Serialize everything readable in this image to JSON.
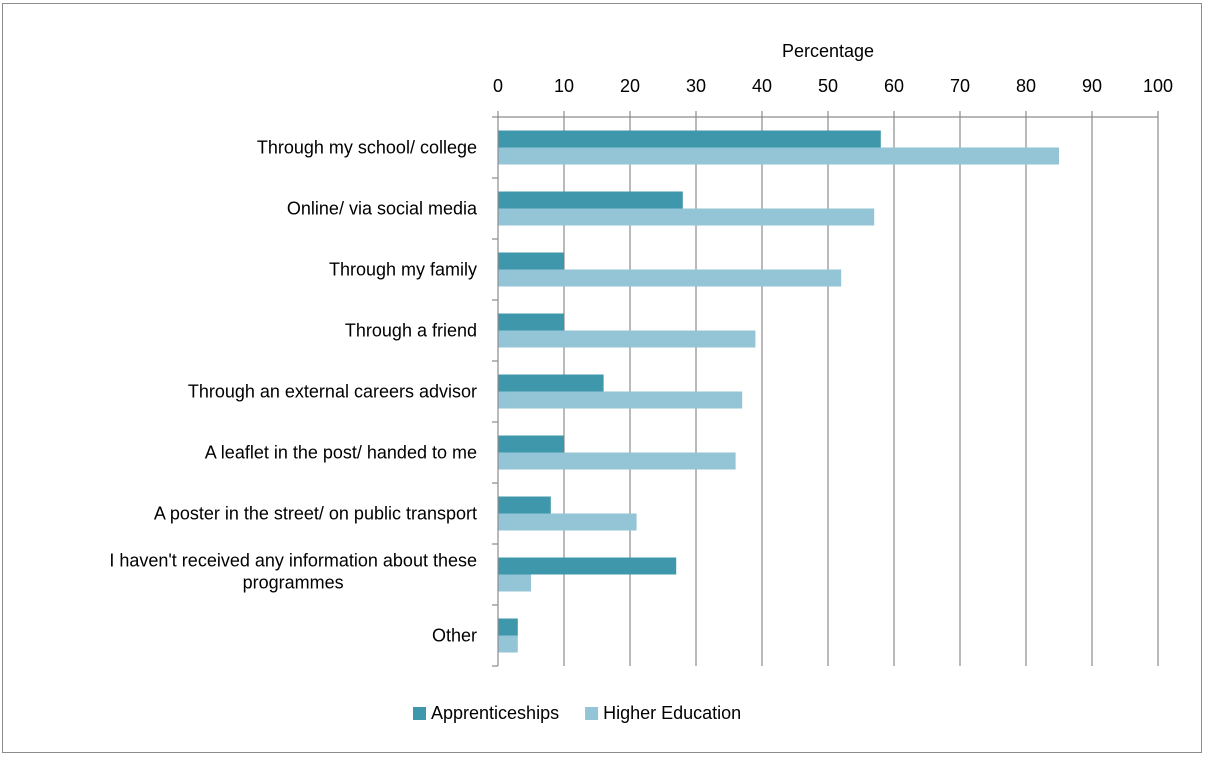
{
  "chart_data": {
    "type": "bar",
    "orientation": "horizontal",
    "title": "",
    "xlabel": "Percentage",
    "ylabel": "",
    "xlim": [
      0,
      100
    ],
    "x_ticks": [
      0,
      10,
      20,
      30,
      40,
      50,
      60,
      70,
      80,
      90,
      100
    ],
    "axis_position": "top",
    "grid": true,
    "legend_position": "bottom",
    "categories": [
      "Through my school/ college",
      "Online/ via social media",
      "Through my family",
      "Through a friend",
      "Through an external careers advisor",
      "A leaflet in the post/ handed to me",
      "A poster in the street/ on public transport",
      "I haven't received any information about these programmes",
      "Other"
    ],
    "series": [
      {
        "name": "Apprenticeships",
        "color": "#3f97ab",
        "values": [
          58,
          28,
          10,
          10,
          16,
          10,
          8,
          27,
          3
        ]
      },
      {
        "name": "Higher Education",
        "color": "#93c5d6",
        "values": [
          85,
          57,
          52,
          39,
          37,
          36,
          21,
          5,
          3
        ]
      }
    ]
  }
}
